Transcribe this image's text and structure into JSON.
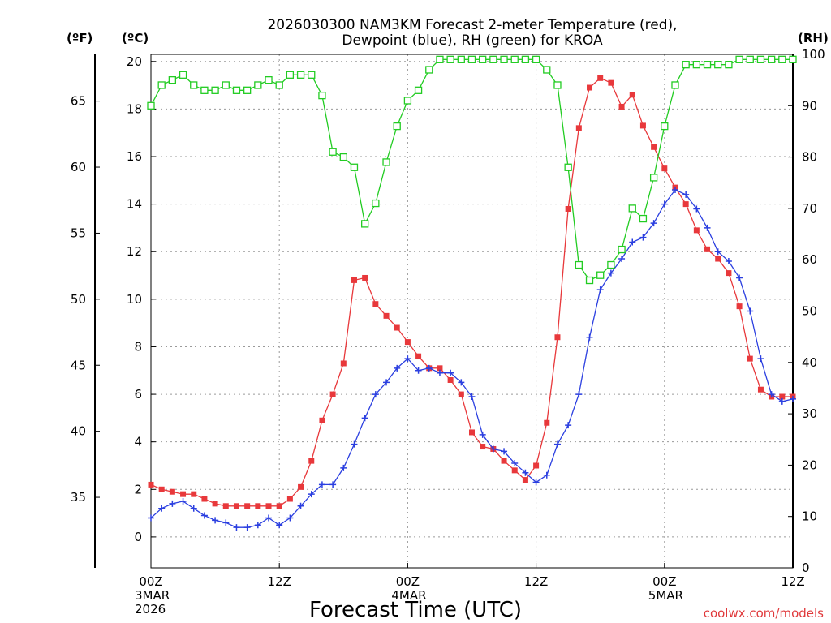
{
  "chart_data": {
    "type": "line",
    "title": "2026030300 NAM3KM Forecast 2-meter Temperature (red),",
    "subtitle": "Dewpoint (blue), RH (green) for KROA",
    "xlabel": "Forecast Time (UTC)",
    "credit": "coolwx.com/models",
    "units": {
      "fahrenheit": "(ºF)",
      "celsius": "(ºC)",
      "rh": "(RH)"
    },
    "x_range_hours": [
      0,
      60
    ],
    "x_ticks": [
      {
        "hour": 0,
        "line1": "00Z",
        "line2": "3MAR",
        "line3": "2026"
      },
      {
        "hour": 12,
        "line1": "12Z",
        "line2": "",
        "line3": ""
      },
      {
        "hour": 24,
        "line1": "00Z",
        "line2": "4MAR",
        "line3": ""
      },
      {
        "hour": 36,
        "line1": "12Z",
        "line2": "",
        "line3": ""
      },
      {
        "hour": 48,
        "line1": "00Z",
        "line2": "5MAR",
        "line3": ""
      },
      {
        "hour": 60,
        "line1": "12Z",
        "line2": "",
        "line3": ""
      }
    ],
    "celsius_axis": {
      "ylim": [
        -1.3,
        20.3
      ],
      "ticks": [
        0,
        2,
        4,
        6,
        8,
        10,
        12,
        14,
        16,
        18,
        20
      ]
    },
    "fahrenheit_axis": {
      "ticks": [
        35,
        40,
        45,
        50,
        55,
        60,
        65
      ]
    },
    "rh_axis": {
      "ylim": [
        0,
        100
      ],
      "ticks": [
        0,
        10,
        20,
        30,
        40,
        50,
        60,
        70,
        80,
        90,
        100
      ]
    },
    "hours": [
      0,
      1,
      2,
      3,
      4,
      5,
      6,
      7,
      8,
      9,
      10,
      11,
      12,
      13,
      14,
      15,
      16,
      17,
      18,
      19,
      20,
      21,
      22,
      23,
      24,
      25,
      26,
      27,
      28,
      29,
      30,
      31,
      32,
      33,
      34,
      35,
      36,
      37,
      38,
      39,
      40,
      41,
      42,
      43,
      44,
      45,
      46,
      47,
      48,
      49,
      50,
      51,
      52,
      53,
      54,
      55,
      56,
      57,
      58,
      59,
      60
    ],
    "series": [
      {
        "name": "Temperature",
        "axis": "celsius",
        "color": "#e8383b",
        "marker": "filled-square",
        "values": [
          2.2,
          2.0,
          1.9,
          1.8,
          1.8,
          1.6,
          1.4,
          1.3,
          1.3,
          1.3,
          1.3,
          1.3,
          1.3,
          1.6,
          2.1,
          3.2,
          4.9,
          6.0,
          7.3,
          10.8,
          10.9,
          9.8,
          9.3,
          8.8,
          8.2,
          7.6,
          7.1,
          7.1,
          6.6,
          6.0,
          4.4,
          3.8,
          3.7,
          3.2,
          2.8,
          2.4,
          3.0,
          4.8,
          8.4,
          13.8,
          17.2,
          18.9,
          19.3,
          19.1,
          18.1,
          18.6,
          17.3,
          16.4,
          15.5,
          14.7,
          14.0,
          12.9,
          12.1,
          11.7,
          11.1,
          9.7,
          7.5,
          6.2,
          5.9,
          5.9,
          5.9
        ]
      },
      {
        "name": "Dewpoint",
        "axis": "celsius",
        "color": "#2b3fe0",
        "marker": "plus",
        "values": [
          0.8,
          1.2,
          1.4,
          1.5,
          1.2,
          0.9,
          0.7,
          0.6,
          0.4,
          0.4,
          0.5,
          0.8,
          0.5,
          0.8,
          1.3,
          1.8,
          2.2,
          2.2,
          2.9,
          3.9,
          5.0,
          6.0,
          6.5,
          7.1,
          7.5,
          7.0,
          7.1,
          6.9,
          6.9,
          6.5,
          5.9,
          4.3,
          3.7,
          3.6,
          3.1,
          2.7,
          2.3,
          2.6,
          3.9,
          4.7,
          6.0,
          8.4,
          10.4,
          11.1,
          11.7,
          12.4,
          12.6,
          13.2,
          14.0,
          14.6,
          14.4,
          13.8,
          13.0,
          12.0,
          11.6,
          10.9,
          9.5,
          7.5,
          6.0,
          5.7,
          5.8
        ]
      },
      {
        "name": "RH",
        "axis": "rh",
        "color": "#22cc22",
        "marker": "open-square",
        "values": [
          90,
          94,
          95,
          96,
          94,
          93,
          93,
          94,
          93,
          93,
          94,
          95,
          94,
          96,
          96,
          96,
          92,
          81,
          80,
          78,
          67,
          71,
          79,
          86,
          91,
          93,
          97,
          99,
          99,
          99,
          99,
          99,
          99,
          99,
          99,
          99,
          99,
          97,
          94,
          78,
          59,
          56,
          57,
          59,
          62,
          70,
          68,
          76,
          86,
          94,
          98,
          98,
          98,
          98,
          98,
          99,
          99,
          99,
          99,
          99,
          99
        ]
      }
    ]
  }
}
